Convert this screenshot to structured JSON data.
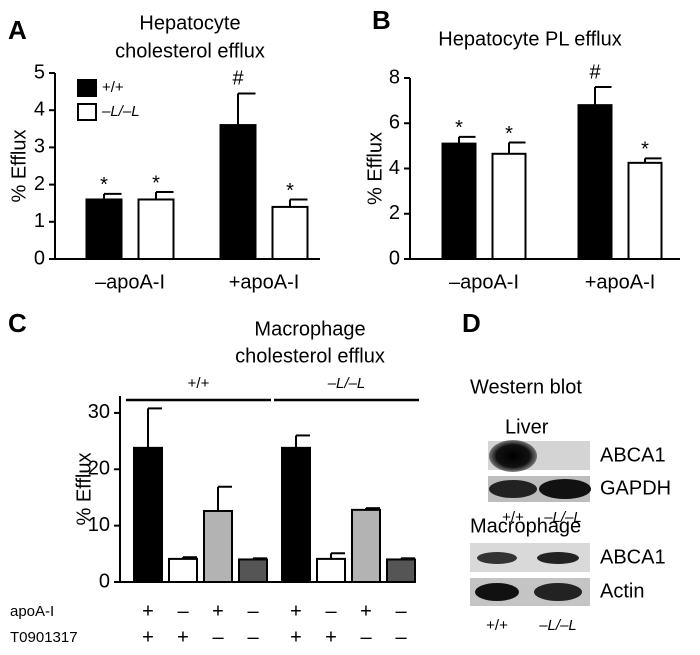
{
  "chart_data": [
    {
      "type": "bar",
      "panel": "A",
      "title_lines": [
        "Hepatocyte",
        "cholesterol efflux"
      ],
      "ylabel": "% Efflux",
      "categories": [
        "–apoA-I",
        "+apoA-I"
      ],
      "series": [
        {
          "name": "+/+",
          "color": "#000000",
          "values": [
            1.6,
            3.6
          ],
          "errors": [
            0.15,
            0.85
          ],
          "annotations": [
            "*",
            "#"
          ]
        },
        {
          "name": "–L/–L",
          "color": "#ffffff",
          "values": [
            1.6,
            1.4
          ],
          "errors": [
            0.2,
            0.2
          ],
          "annotations": [
            "*",
            "*"
          ]
        }
      ],
      "ylim": [
        0,
        5
      ],
      "yticks": [
        0,
        1,
        2,
        3,
        4,
        5
      ],
      "legend": "upper-left"
    },
    {
      "type": "bar",
      "panel": "B",
      "title_lines": [
        "Hepatocyte PL efflux"
      ],
      "ylabel": "% Efflux",
      "categories": [
        "–apoA-I",
        "+apoA-I"
      ],
      "series": [
        {
          "color": "#000000",
          "values": [
            5.1,
            6.8
          ],
          "errors": [
            0.3,
            0.8
          ],
          "annotations": [
            "*",
            "#"
          ]
        },
        {
          "color": "#ffffff",
          "values": [
            4.65,
            4.25
          ],
          "errors": [
            0.5,
            0.2
          ],
          "annotations": [
            "*",
            "*"
          ]
        }
      ],
      "ylim": [
        0,
        8
      ],
      "yticks": [
        0,
        2,
        4,
        6,
        8
      ]
    },
    {
      "type": "bar",
      "panel": "C",
      "title_lines": [
        "Macrophage",
        "cholesterol efflux"
      ],
      "ylabel": "% Efflux",
      "values": [
        23.8,
        4.1,
        12.6,
        4.0,
        23.8,
        4.1,
        12.8,
        4.0
      ],
      "errors": [
        7,
        0.3,
        4.3,
        0.2,
        2.2,
        1,
        0.3,
        0.2
      ],
      "colors": [
        "#000000",
        "#ffffff",
        "#b3b3b3",
        "#555555",
        "#000000",
        "#ffffff",
        "#b3b3b3",
        "#555555"
      ],
      "groups": [
        "+/+",
        "–L/–L"
      ],
      "rows": [
        {
          "label": "apoA-I",
          "signs": [
            "+",
            "–",
            "+",
            "–",
            "+",
            "–",
            "+",
            "–"
          ]
        },
        {
          "label": "T0901317",
          "signs": [
            "+",
            "+",
            "–",
            "–",
            "+",
            "+",
            "–",
            "–"
          ]
        }
      ],
      "ylim": [
        0,
        33
      ],
      "yticks": [
        0,
        10,
        20,
        30
      ]
    }
  ],
  "western_blot": {
    "panel": "D",
    "title": "Western blot",
    "liver": {
      "label": "Liver",
      "bands": [
        "ABCA1",
        "GAPDH"
      ],
      "lanes": [
        "+/+",
        "–L/–L"
      ]
    },
    "macrophage": {
      "label": "Macrophage",
      "bands": [
        "ABCA1",
        "Actin"
      ],
      "lanes": [
        "+/+",
        "–L/–L"
      ]
    }
  }
}
